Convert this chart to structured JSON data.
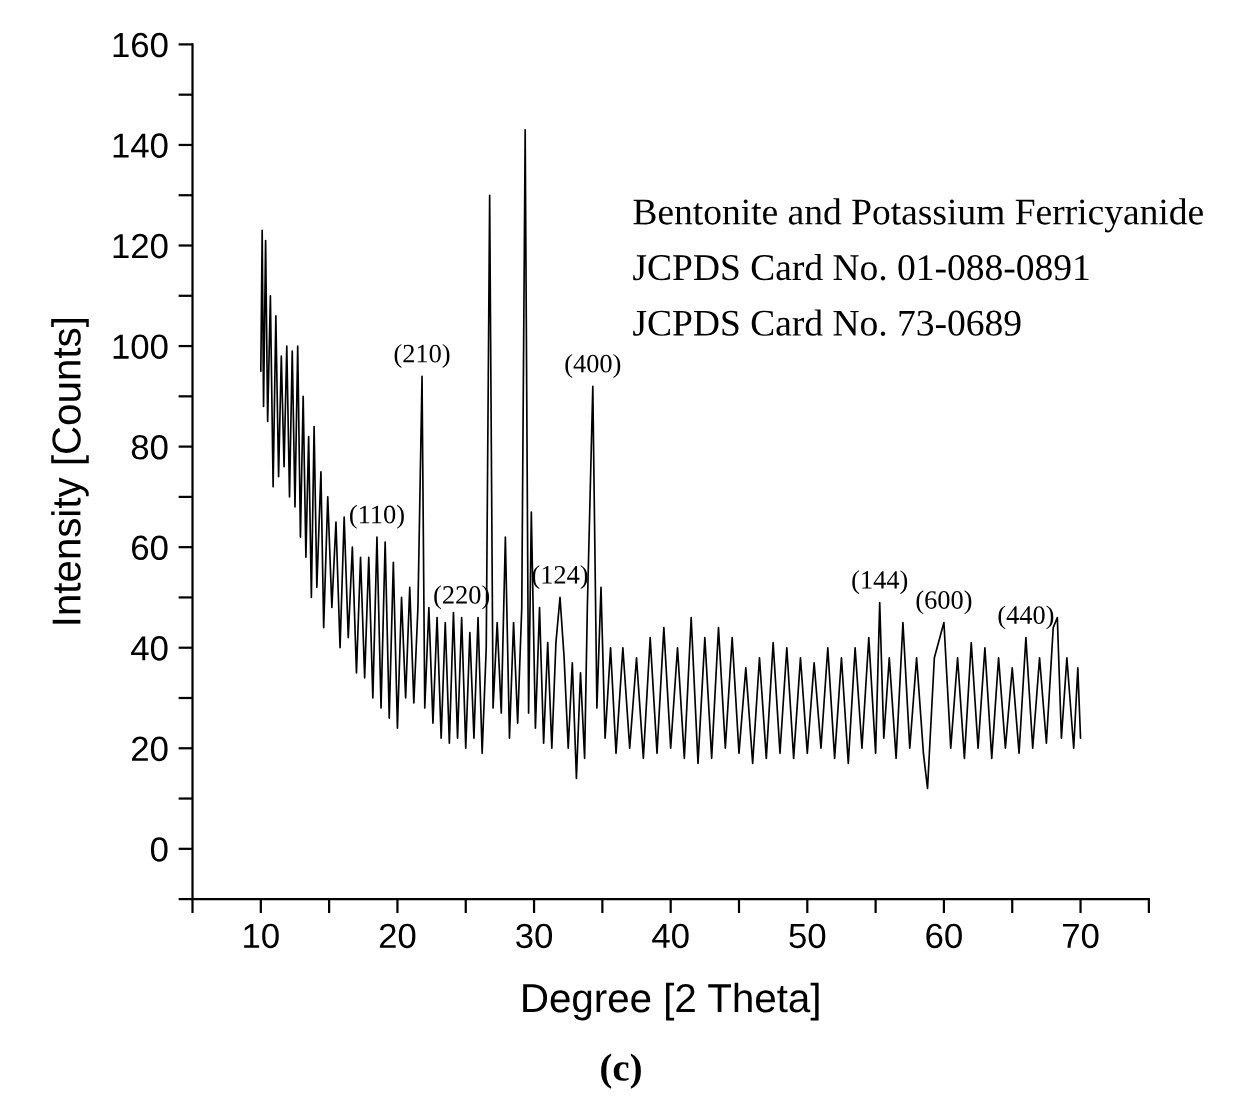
{
  "chart_data": {
    "type": "line",
    "xlabel": "Degree [2 Theta]",
    "ylabel": "Intensity [Counts]",
    "xlim": [
      5,
      75
    ],
    "ylim": [
      -10,
      160
    ],
    "xticks": [
      {
        "value": 5,
        "label": null
      },
      10,
      {
        "value": 15,
        "label": null
      },
      20,
      {
        "value": 25,
        "label": null
      },
      30,
      {
        "value": 35,
        "label": null
      },
      40,
      {
        "value": 45,
        "label": null
      },
      50,
      {
        "value": 55,
        "label": null
      },
      60,
      {
        "value": 65,
        "label": null
      },
      70,
      {
        "value": 75,
        "label": null
      }
    ],
    "yticks": [
      {
        "value": -10,
        "label": null
      },
      0,
      {
        "value": 10,
        "label": null
      },
      20,
      {
        "value": 30,
        "label": null
      },
      40,
      {
        "value": 50,
        "label": null
      },
      60,
      {
        "value": 70,
        "label": null
      },
      80,
      {
        "value": 90,
        "label": null
      },
      100,
      {
        "value": 110,
        "label": null
      },
      120,
      {
        "value": 130,
        "label": null
      },
      140,
      {
        "value": 150,
        "label": null
      },
      160
    ],
    "grid": false,
    "marker": "none",
    "line_style": "solid",
    "series": [
      {
        "color": "#000000",
        "x": [
          10.0,
          10.1,
          10.2,
          10.35,
          10.5,
          10.7,
          10.9,
          11.1,
          11.3,
          11.5,
          11.7,
          11.9,
          12.1,
          12.3,
          12.5,
          12.7,
          12.9,
          13.1,
          13.3,
          13.5,
          13.7,
          13.9,
          14.1,
          14.4,
          14.6,
          14.9,
          15.2,
          15.5,
          15.8,
          16.1,
          16.4,
          16.7,
          17.0,
          17.3,
          17.6,
          17.9,
          18.2,
          18.5,
          18.8,
          19.1,
          19.4,
          19.7,
          20.0,
          20.3,
          20.6,
          20.9,
          21.2,
          21.5,
          21.8,
          22.0,
          22.3,
          22.6,
          22.9,
          23.2,
          23.5,
          23.8,
          24.1,
          24.4,
          24.7,
          25.0,
          25.3,
          25.6,
          25.9,
          26.2,
          26.5,
          26.75,
          27.0,
          27.3,
          27.6,
          27.9,
          28.2,
          28.5,
          28.8,
          29.1,
          29.35,
          29.6,
          29.8,
          30.1,
          30.4,
          30.7,
          31.0,
          31.3,
          31.6,
          31.9,
          32.2,
          32.5,
          32.8,
          33.1,
          33.4,
          33.7,
          33.9,
          34.3,
          34.6,
          34.9,
          35.2,
          35.6,
          36.0,
          36.5,
          37.0,
          37.5,
          38.0,
          38.5,
          39.0,
          39.5,
          40.0,
          40.5,
          41.0,
          41.5,
          42.0,
          42.5,
          43.0,
          43.5,
          44.0,
          44.5,
          45.0,
          45.5,
          46.0,
          46.5,
          47.0,
          47.5,
          48.0,
          48.5,
          49.0,
          49.5,
          50.0,
          50.5,
          51.0,
          51.5,
          52.0,
          52.5,
          53.0,
          53.5,
          54.0,
          54.5,
          55.0,
          55.3,
          55.6,
          56.0,
          56.5,
          57.0,
          57.5,
          58.0,
          58.5,
          58.8,
          59.3,
          60.0,
          60.5,
          61.0,
          61.5,
          62.0,
          62.5,
          63.0,
          63.5,
          64.0,
          64.5,
          65.0,
          65.5,
          66.0,
          66.5,
          67.0,
          67.5,
          68.0,
          68.3,
          68.6,
          69.0,
          69.5,
          69.8,
          70.0
        ],
        "values": [
          95,
          123,
          88,
          121,
          85,
          110,
          72,
          106,
          74,
          98,
          76,
          100,
          70,
          99,
          68,
          100,
          62,
          90,
          58,
          82,
          50,
          84,
          52,
          75,
          44,
          70,
          48,
          65,
          40,
          66,
          42,
          60,
          35,
          58,
          34,
          58,
          30,
          62,
          28,
          61,
          26,
          57,
          24,
          50,
          30,
          52,
          29,
          48,
          94,
          28,
          48,
          25,
          46,
          22,
          45,
          21,
          47,
          22,
          46,
          20,
          43,
          22,
          46,
          19,
          40,
          130,
          28,
          45,
          27,
          62,
          22,
          45,
          25,
          48,
          143,
          27,
          67,
          24,
          48,
          21,
          41,
          20,
          41,
          50,
          38,
          20,
          37,
          14,
          35,
          18,
          48,
          92,
          28,
          52,
          22,
          40,
          19,
          40,
          20,
          38,
          18,
          42,
          19,
          44,
          20,
          40,
          18,
          46,
          17,
          42,
          18,
          44,
          20,
          42,
          19,
          36,
          17,
          38,
          18,
          41,
          19,
          40,
          18,
          38,
          19,
          37,
          20,
          40,
          18,
          38,
          17,
          40,
          20,
          42,
          19,
          49,
          22,
          38,
          18,
          45,
          20,
          38,
          19,
          12,
          38,
          45,
          20,
          38,
          18,
          41,
          20,
          40,
          18,
          38,
          20,
          36,
          19,
          42,
          20,
          38,
          21,
          44,
          46,
          22,
          38,
          20,
          36,
          22
        ]
      }
    ],
    "annotations": [
      {
        "text": "(110)",
        "x": 18.5,
        "y": 62
      },
      {
        "text": "(210)",
        "x": 21.8,
        "y": 94
      },
      {
        "text": "(220)",
        "x": 24.7,
        "y": 46
      },
      {
        "text": "(124)",
        "x": 31.9,
        "y": 50
      },
      {
        "text": "(400)",
        "x": 34.3,
        "y": 92
      },
      {
        "text": "(144)",
        "x": 55.3,
        "y": 49
      },
      {
        "text": "(600)",
        "x": 60.0,
        "y": 45
      },
      {
        "text": "(440)",
        "x": 66.0,
        "y": 42
      },
      "Bentonite and Potassium Ferricyanide",
      "JCPDS Card No. 01-088-0891",
      "JCPDS Card No. 73-0689",
      "(c)"
    ]
  }
}
